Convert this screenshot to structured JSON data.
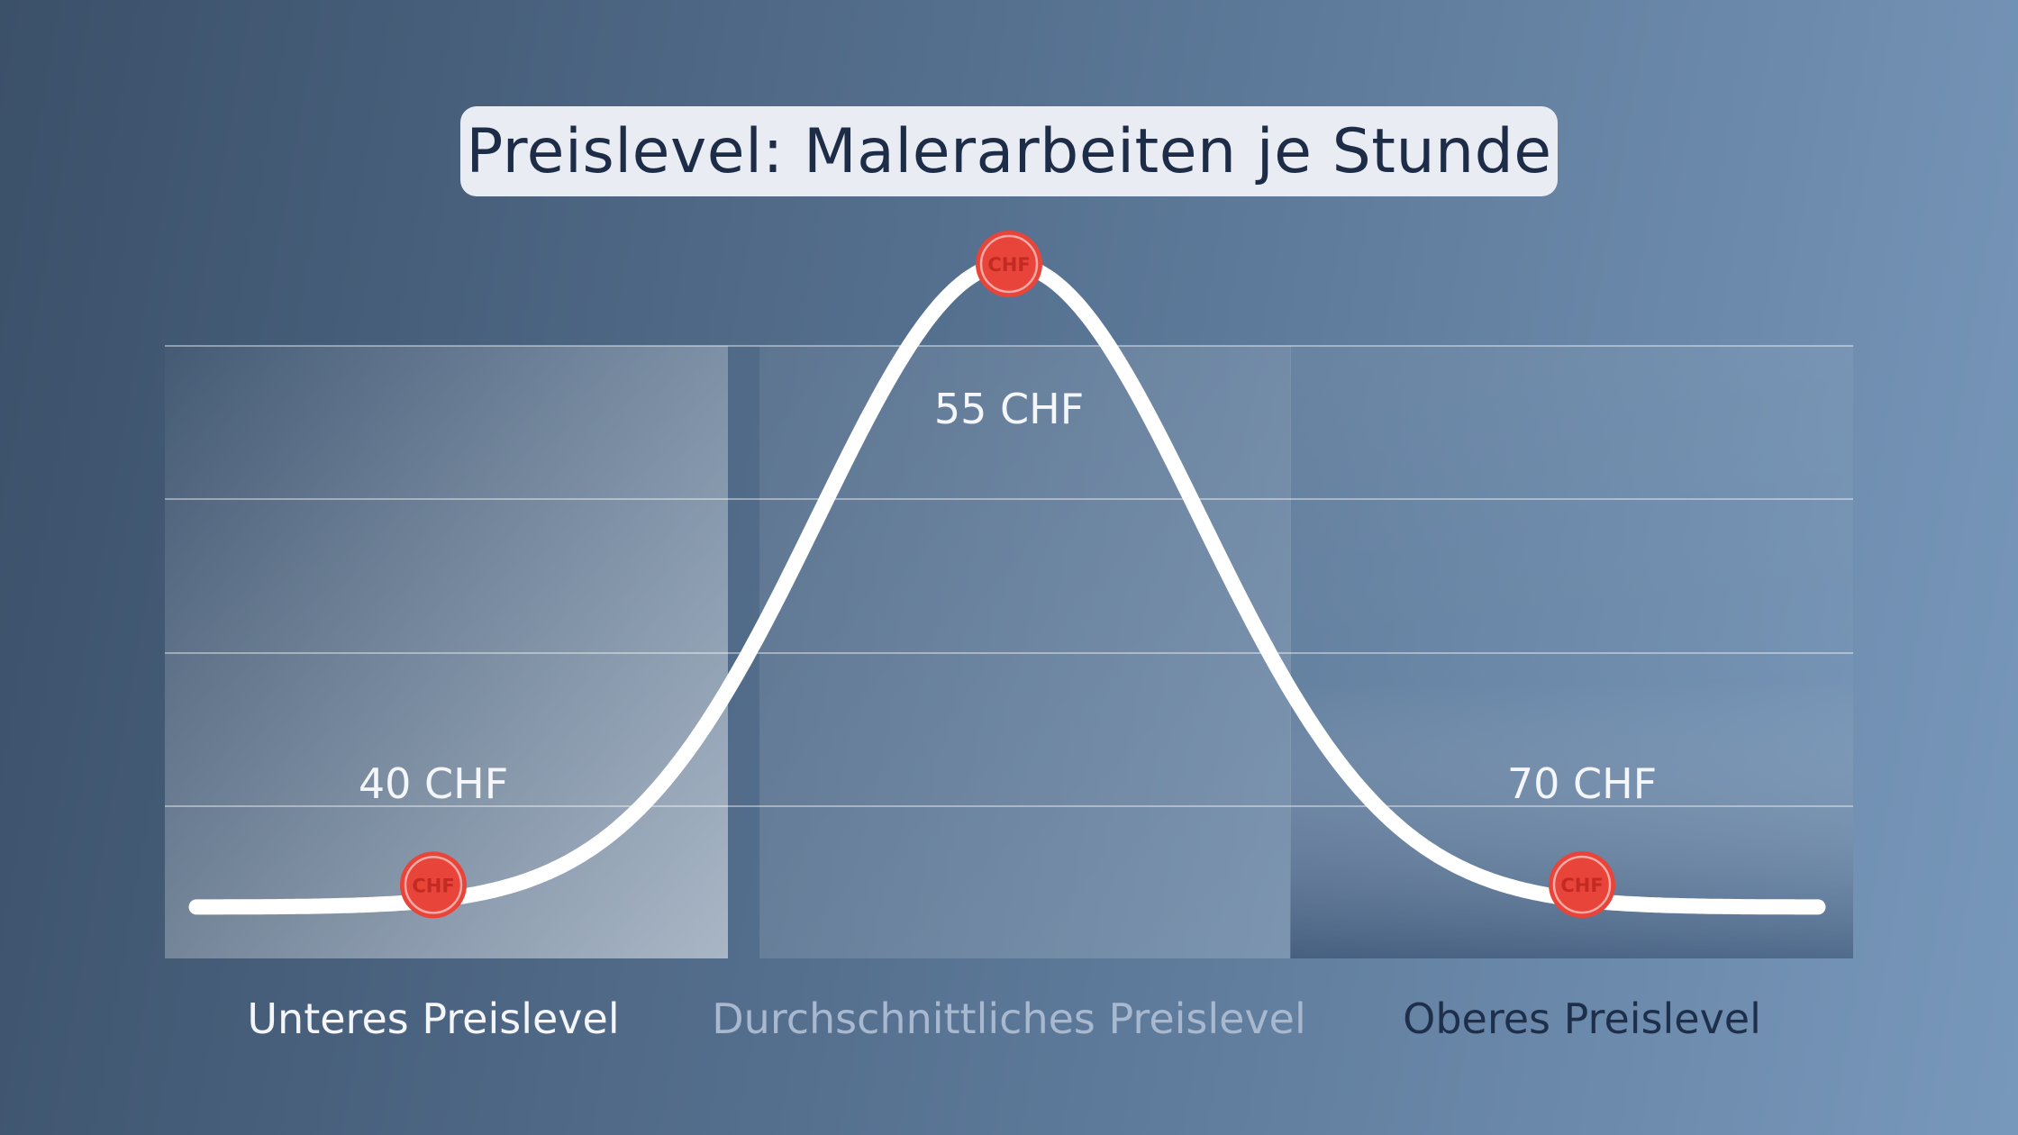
{
  "chart_data": {
    "type": "line",
    "title": "Preislevel: Malerarbeiten je Stunde",
    "categories": [
      "Unteres Preislevel",
      "Durchschnittliches Preislevel",
      "Oberes Preislevel"
    ],
    "values": [
      40,
      55,
      70
    ],
    "value_labels": [
      "40 CHF",
      "55 CHF",
      "70 CHF"
    ],
    "marker_text": "CHF",
    "grid": true,
    "colors": {
      "curve": "#ffffff",
      "marker": "#e8443a",
      "title_background": "#e9ecf3",
      "title_text": "#1d2c47",
      "category_low": "#f4f6fa",
      "category_mid": "#a8b9cf",
      "category_high": "#1e2f4c"
    }
  }
}
